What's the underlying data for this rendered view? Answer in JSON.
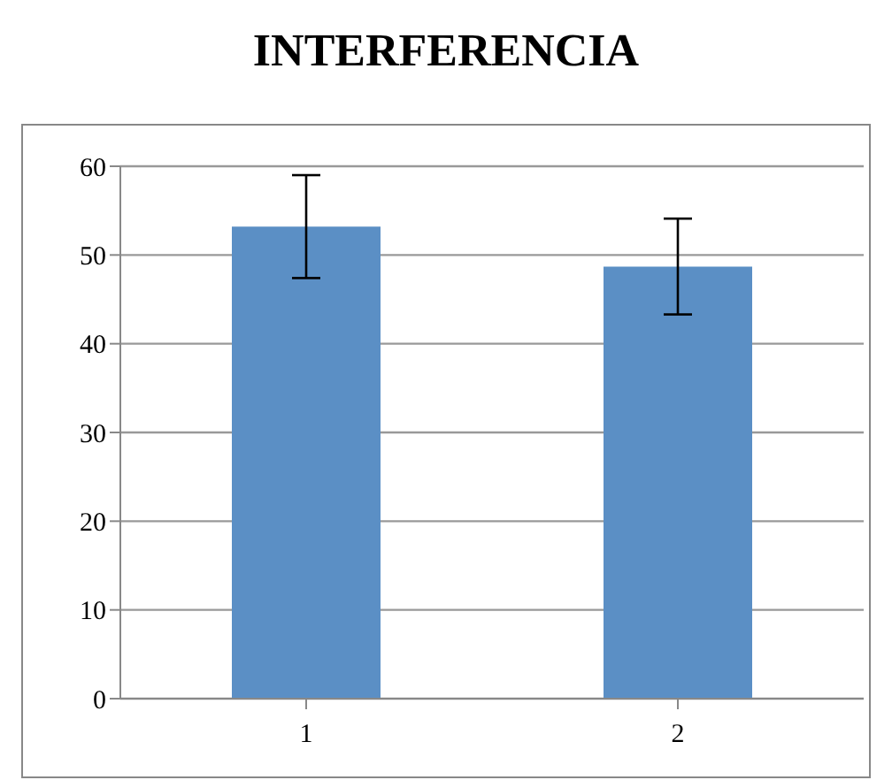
{
  "chart_data": {
    "type": "bar",
    "title": "INTERFERENCIA",
    "categories": [
      "1",
      "2"
    ],
    "values": [
      53.2,
      48.7
    ],
    "errors": [
      5.8,
      5.4
    ],
    "color": "#5b8fc5",
    "ylim": [
      0,
      60
    ],
    "yticks": [
      0,
      10,
      20,
      30,
      40,
      50,
      60
    ],
    "grid": "y"
  }
}
